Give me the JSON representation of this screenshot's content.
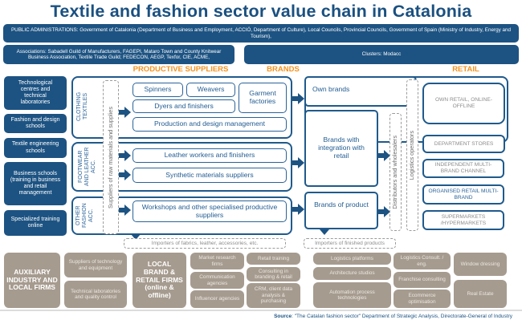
{
  "title": "Textile and fashion sector value chain in Catalonia",
  "public_admin": "PUBLIC ADMINISTRATIONS: Government of Catalonia (Department of Business and Employment, ACCIÓ, Department of Culture), Local Councils, Provincial Councils, Government of Spain (Ministry of Industry, Energy and Tourism),",
  "associations": "Associations: Sabadell Guild of Manufacturers, FAGEPI, Mataro Town and County Knitwear Business Association, Textile Trade Guild; FEDECON, AEGP, Texfor, CIE, ACME,",
  "clusters": "Clusters: Modacc",
  "headers": {
    "productive": "PRODUCTIVE SUPPLIERS",
    "brands": "BRANDS",
    "retail": "RETAIL"
  },
  "left": [
    "Technological centres and technical laboratories",
    "Fashion and design schools",
    "Textile engineering schools",
    "Business schools (training in business and retail management",
    "Specialized training online"
  ],
  "groups": {
    "clothing": "CLOTHING TEXTILES",
    "footwear": "FOOTWEAR AND LEATHER ACC.",
    "other": "OTHER FASHION ACC."
  },
  "raw_suppliers": "Suppliers of raw materials and supplies",
  "suppliers": {
    "spinners": "Spinners",
    "weavers": "Weavers",
    "garment": "Garment factories",
    "dyers": "Dyers and finishers",
    "production": "Production and design management",
    "leather": "Leather workers and finishers",
    "synthetic": "Synthetic materials suppliers",
    "workshops": "Workshops and other specialised productive suppliers"
  },
  "importers_fabrics": "Importers of fabrics, leather, accessories, etc.",
  "brands": {
    "own": "Own brands",
    "integration": "Brands with integration with retail",
    "product": "Brands of product"
  },
  "distributors": "Distributors and wholesalers",
  "logistics": "Logistics operators",
  "retail": [
    "OWN RETAIL, ONLINE-OFFLINE",
    "DEPARTMENT STORES",
    "INDEPENDENT MULTI-BRAND CHANNEL",
    "ORGANISED RETAIL MULTI-BRAND",
    "SUPERMARKETS /HYPERMARKETS"
  ],
  "importers_finished": "Importers of finished products",
  "aux": {
    "auxiliary": "AUXILIARY INDUSTRY AND LOCAL FIRMS",
    "suppliers_tech": "Suppliers of technology and equipment",
    "tech_labs": "Technical laboratories and quality control",
    "local_brand": "LOCAL BRAND & RETAIL FIRMS (online & offline)",
    "market": "Market research firms",
    "communication": "Communication agencies",
    "influencer": "Influencer agencies",
    "retail_training": "Retail training",
    "consulting": "Consulting in branding & retail",
    "crm": "CRM, client data analysis & purchasing",
    "log_platforms": "Logistics platforms",
    "architecture": "Architecture studios",
    "automation": "Automation process technologies",
    "log_consult": "Logistics Consult. / eng.",
    "franchise": "Franchise consulting",
    "ecommerce": "Ecommerce optimisation",
    "window": "Window dressing",
    "real_estate": "Real Estate"
  },
  "source": {
    "label": "Source",
    "text": ": \"The Catalan fashion sector\" Department of Strategic Analysis, Directorate-General of Industry"
  },
  "colors": {
    "dark_blue": "#1d5382",
    "orange": "#f39220",
    "taupe": "#a69b8f"
  }
}
